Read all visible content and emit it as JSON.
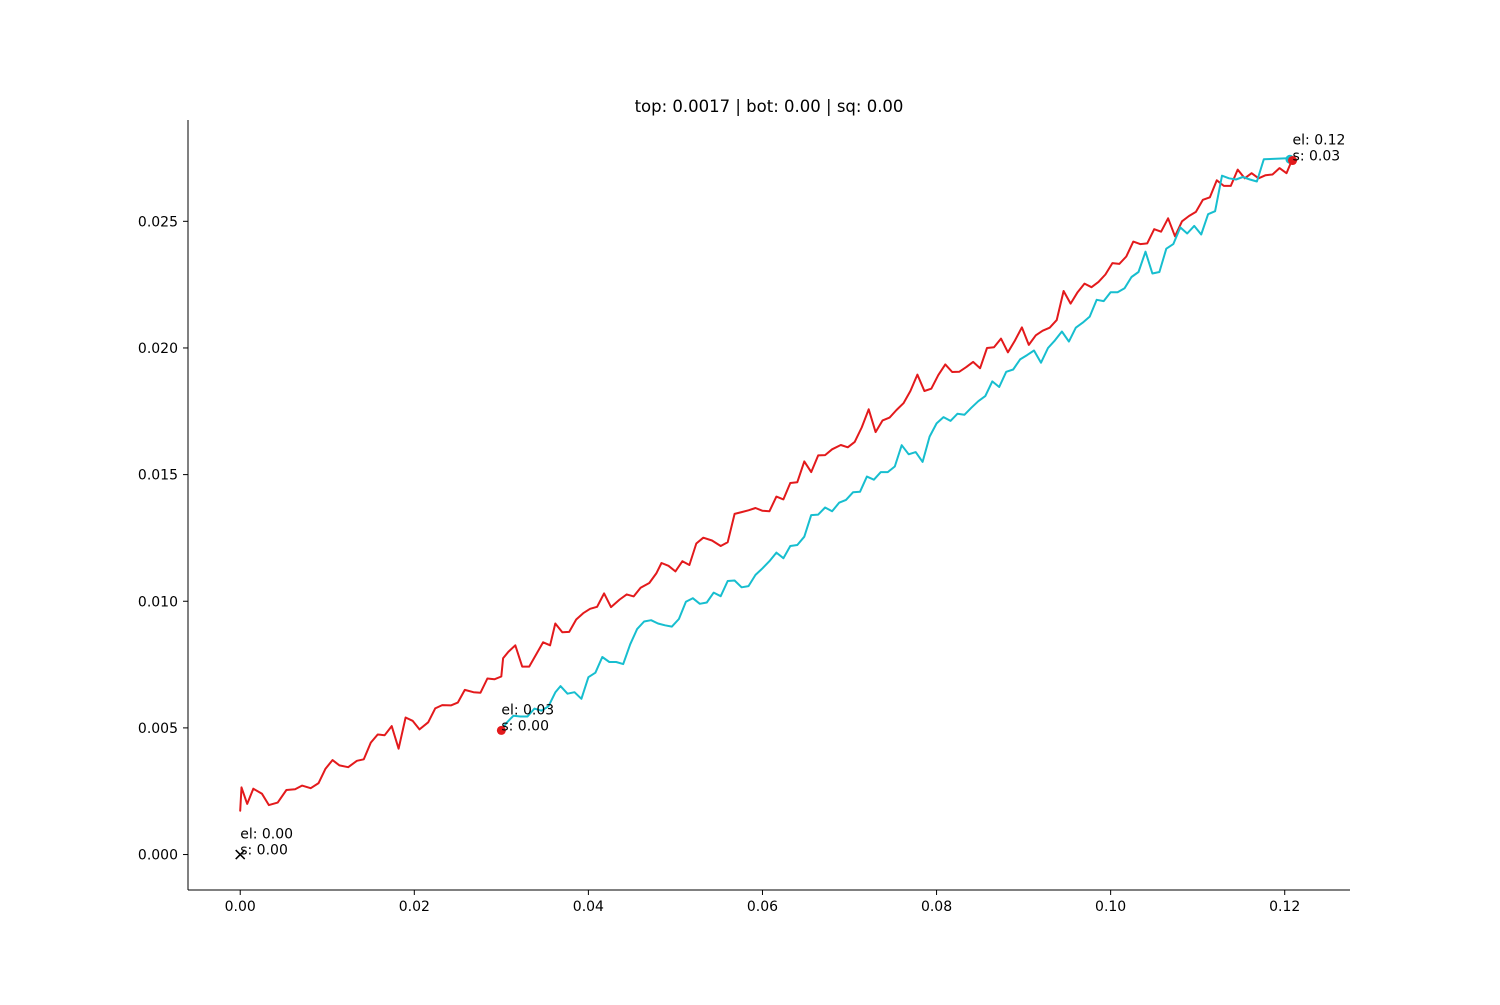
{
  "chart_data": {
    "type": "line",
    "title": "top: 0.0017 | bot: 0.00 | sq: 0.00",
    "xlabel": "",
    "ylabel": "",
    "xlim": [
      -0.006,
      0.1275
    ],
    "ylim": [
      -0.0014,
      0.029
    ],
    "x_ticks": [
      0.0,
      0.02,
      0.04,
      0.06,
      0.08,
      0.1,
      0.12
    ],
    "x_tick_labels": [
      "0.00",
      "0.02",
      "0.04",
      "0.06",
      "0.08",
      "0.10",
      "0.12"
    ],
    "y_ticks": [
      0.0,
      0.005,
      0.01,
      0.015,
      0.02,
      0.025
    ],
    "y_tick_labels": [
      "0.000",
      "0.005",
      "0.010",
      "0.015",
      "0.020",
      "0.025"
    ],
    "grid": false,
    "legend": "none",
    "colors": {
      "red": "#e31a1c",
      "teal": "#17becf",
      "marker": "#000000"
    },
    "series": [
      {
        "color": "#e31a1c",
        "points": [
          [
            0.0,
            0.00173
          ],
          [
            0.00015,
            0.00265
          ],
          [
            0.0008,
            0.002
          ],
          [
            0.0015,
            0.0026
          ],
          [
            0.0025,
            0.0024
          ],
          [
            0.0033,
            0.00195
          ],
          [
            0.0043,
            0.00205
          ],
          [
            0.0053,
            0.00255
          ],
          [
            0.0063,
            0.00258
          ],
          [
            0.0071,
            0.00272
          ],
          [
            0.0081,
            0.00262
          ],
          [
            0.009,
            0.00282
          ],
          [
            0.0098,
            0.00339
          ],
          [
            0.0106,
            0.00373
          ],
          [
            0.0114,
            0.00352
          ],
          [
            0.0124,
            0.00345
          ],
          [
            0.0134,
            0.0037
          ],
          [
            0.0142,
            0.00376
          ],
          [
            0.015,
            0.00442
          ],
          [
            0.0158,
            0.00474
          ],
          [
            0.0166,
            0.00471
          ],
          [
            0.0174,
            0.00507
          ],
          [
            0.0182,
            0.00418
          ],
          [
            0.019,
            0.00541
          ],
          [
            0.0198,
            0.00528
          ],
          [
            0.0206,
            0.00494
          ],
          [
            0.0216,
            0.00522
          ],
          [
            0.0224,
            0.00577
          ],
          [
            0.0232,
            0.0059
          ],
          [
            0.0242,
            0.00589
          ],
          [
            0.025,
            0.006
          ],
          [
            0.0258,
            0.0065
          ],
          [
            0.0268,
            0.00641
          ],
          [
            0.0276,
            0.00639
          ],
          [
            0.0284,
            0.00695
          ],
          [
            0.0292,
            0.00692
          ],
          [
            0.03,
            0.00703
          ],
          [
            0.0302,
            0.00775
          ],
          [
            0.0308,
            0.008
          ],
          [
            0.0316,
            0.00826
          ],
          [
            0.0324,
            0.00742
          ],
          [
            0.0332,
            0.00742
          ],
          [
            0.034,
            0.0079
          ],
          [
            0.0348,
            0.00838
          ],
          [
            0.0356,
            0.00826
          ],
          [
            0.0362,
            0.00912
          ],
          [
            0.037,
            0.00878
          ],
          [
            0.0378,
            0.00879
          ],
          [
            0.0386,
            0.00928
          ],
          [
            0.0394,
            0.00953
          ],
          [
            0.0402,
            0.0097
          ],
          [
            0.041,
            0.00978
          ],
          [
            0.0418,
            0.01031
          ],
          [
            0.0426,
            0.00977
          ],
          [
            0.0436,
            0.01007
          ],
          [
            0.0444,
            0.01027
          ],
          [
            0.0452,
            0.01019
          ],
          [
            0.046,
            0.01053
          ],
          [
            0.047,
            0.01072
          ],
          [
            0.0478,
            0.0111
          ],
          [
            0.0484,
            0.01151
          ],
          [
            0.0492,
            0.0114
          ],
          [
            0.05,
            0.01118
          ],
          [
            0.0508,
            0.01158
          ],
          [
            0.0516,
            0.01143
          ],
          [
            0.0524,
            0.01228
          ],
          [
            0.0532,
            0.01251
          ],
          [
            0.0542,
            0.0124
          ],
          [
            0.0552,
            0.01218
          ],
          [
            0.056,
            0.01233
          ],
          [
            0.0568,
            0.01345
          ],
          [
            0.0576,
            0.01352
          ],
          [
            0.0584,
            0.01359
          ],
          [
            0.0592,
            0.01368
          ],
          [
            0.06,
            0.01357
          ],
          [
            0.0608,
            0.01355
          ],
          [
            0.0616,
            0.01413
          ],
          [
            0.0624,
            0.01402
          ],
          [
            0.0632,
            0.01467
          ],
          [
            0.064,
            0.0147
          ],
          [
            0.0648,
            0.01552
          ],
          [
            0.0656,
            0.0151
          ],
          [
            0.0664,
            0.01576
          ],
          [
            0.0672,
            0.01577
          ],
          [
            0.068,
            0.016
          ],
          [
            0.069,
            0.01617
          ],
          [
            0.0698,
            0.01608
          ],
          [
            0.0706,
            0.01629
          ],
          [
            0.0714,
            0.01686
          ],
          [
            0.0722,
            0.01758
          ],
          [
            0.073,
            0.01668
          ],
          [
            0.0738,
            0.01714
          ],
          [
            0.0746,
            0.01725
          ],
          [
            0.0754,
            0.01755
          ],
          [
            0.0762,
            0.01782
          ],
          [
            0.077,
            0.0183
          ],
          [
            0.0778,
            0.01895
          ],
          [
            0.0786,
            0.0183
          ],
          [
            0.0794,
            0.01839
          ],
          [
            0.0802,
            0.01893
          ],
          [
            0.081,
            0.01935
          ],
          [
            0.0818,
            0.01905
          ],
          [
            0.0826,
            0.01906
          ],
          [
            0.0834,
            0.01924
          ],
          [
            0.0842,
            0.01945
          ],
          [
            0.085,
            0.0192
          ],
          [
            0.0858,
            0.02
          ],
          [
            0.0866,
            0.02003
          ],
          [
            0.0874,
            0.02037
          ],
          [
            0.0882,
            0.01983
          ],
          [
            0.089,
            0.02029
          ],
          [
            0.0898,
            0.02081
          ],
          [
            0.0906,
            0.02012
          ],
          [
            0.0914,
            0.0205
          ],
          [
            0.0922,
            0.02068
          ],
          [
            0.093,
            0.0208
          ],
          [
            0.0938,
            0.0211
          ],
          [
            0.0946,
            0.02225
          ],
          [
            0.0954,
            0.02175
          ],
          [
            0.0962,
            0.0222
          ],
          [
            0.097,
            0.02254
          ],
          [
            0.0978,
            0.0224
          ],
          [
            0.0986,
            0.02261
          ],
          [
            0.0994,
            0.0229
          ],
          [
            0.1002,
            0.02335
          ],
          [
            0.101,
            0.02332
          ],
          [
            0.1018,
            0.02361
          ],
          [
            0.1026,
            0.0242
          ],
          [
            0.1034,
            0.0241
          ],
          [
            0.1042,
            0.02413
          ],
          [
            0.105,
            0.02469
          ],
          [
            0.1058,
            0.02459
          ],
          [
            0.1066,
            0.02512
          ],
          [
            0.1074,
            0.02441
          ],
          [
            0.1082,
            0.025
          ],
          [
            0.109,
            0.02521
          ],
          [
            0.1098,
            0.02537
          ],
          [
            0.1106,
            0.02585
          ],
          [
            0.1114,
            0.02595
          ],
          [
            0.1122,
            0.02662
          ],
          [
            0.113,
            0.0264
          ],
          [
            0.1138,
            0.0264
          ],
          [
            0.1146,
            0.02704
          ],
          [
            0.1154,
            0.0267
          ],
          [
            0.1162,
            0.0269
          ],
          [
            0.117,
            0.0267
          ],
          [
            0.1178,
            0.02682
          ],
          [
            0.1186,
            0.02685
          ],
          [
            0.1194,
            0.0271
          ],
          [
            0.1202,
            0.0269
          ],
          [
            0.1208,
            0.02739
          ]
        ]
      },
      {
        "color": "#17becf",
        "points": [
          [
            0.03,
            0.0049
          ],
          [
            0.0306,
            0.0052
          ],
          [
            0.0314,
            0.00548
          ],
          [
            0.0322,
            0.00545
          ],
          [
            0.033,
            0.00545
          ],
          [
            0.0338,
            0.00576
          ],
          [
            0.0346,
            0.00568
          ],
          [
            0.0354,
            0.00585
          ],
          [
            0.0362,
            0.0064
          ],
          [
            0.0368,
            0.00665
          ],
          [
            0.0376,
            0.00635
          ],
          [
            0.0384,
            0.00641
          ],
          [
            0.0392,
            0.00615
          ],
          [
            0.04,
            0.007
          ],
          [
            0.0408,
            0.00718
          ],
          [
            0.0416,
            0.0078
          ],
          [
            0.0424,
            0.0076
          ],
          [
            0.0432,
            0.0076
          ],
          [
            0.044,
            0.00752
          ],
          [
            0.0448,
            0.0083
          ],
          [
            0.0456,
            0.0089
          ],
          [
            0.0464,
            0.0092
          ],
          [
            0.0472,
            0.00925
          ],
          [
            0.048,
            0.00912
          ],
          [
            0.0488,
            0.00905
          ],
          [
            0.0496,
            0.009
          ],
          [
            0.0504,
            0.0093
          ],
          [
            0.0512,
            0.00998
          ],
          [
            0.052,
            0.01012
          ],
          [
            0.0528,
            0.0099
          ],
          [
            0.0536,
            0.00995
          ],
          [
            0.0544,
            0.01034
          ],
          [
            0.0552,
            0.0102
          ],
          [
            0.056,
            0.0108
          ],
          [
            0.0568,
            0.01082
          ],
          [
            0.0576,
            0.01055
          ],
          [
            0.0584,
            0.0106
          ],
          [
            0.0592,
            0.01104
          ],
          [
            0.06,
            0.0113
          ],
          [
            0.0608,
            0.01158
          ],
          [
            0.0616,
            0.01192
          ],
          [
            0.0624,
            0.0117
          ],
          [
            0.0632,
            0.01218
          ],
          [
            0.064,
            0.01222
          ],
          [
            0.0648,
            0.01255
          ],
          [
            0.0656,
            0.0134
          ],
          [
            0.0664,
            0.01342
          ],
          [
            0.0672,
            0.0137
          ],
          [
            0.068,
            0.01355
          ],
          [
            0.0688,
            0.01389
          ],
          [
            0.0696,
            0.014
          ],
          [
            0.0704,
            0.0143
          ],
          [
            0.0712,
            0.01432
          ],
          [
            0.072,
            0.01492
          ],
          [
            0.0728,
            0.0148
          ],
          [
            0.0736,
            0.0151
          ],
          [
            0.0744,
            0.0151
          ],
          [
            0.0752,
            0.01532
          ],
          [
            0.076,
            0.01616
          ],
          [
            0.0768,
            0.0158
          ],
          [
            0.0776,
            0.01589
          ],
          [
            0.0784,
            0.0155
          ],
          [
            0.0792,
            0.0165
          ],
          [
            0.08,
            0.01702
          ],
          [
            0.0808,
            0.01727
          ],
          [
            0.0816,
            0.01712
          ],
          [
            0.0824,
            0.0174
          ],
          [
            0.0832,
            0.01736
          ],
          [
            0.084,
            0.01764
          ],
          [
            0.0848,
            0.0179
          ],
          [
            0.0856,
            0.0181
          ],
          [
            0.0864,
            0.01868
          ],
          [
            0.0872,
            0.01846
          ],
          [
            0.088,
            0.01906
          ],
          [
            0.0888,
            0.01915
          ],
          [
            0.0896,
            0.01955
          ],
          [
            0.0904,
            0.01972
          ],
          [
            0.0912,
            0.0199
          ],
          [
            0.092,
            0.01942
          ],
          [
            0.0928,
            0.02
          ],
          [
            0.0936,
            0.0203
          ],
          [
            0.0944,
            0.02065
          ],
          [
            0.0952,
            0.02025
          ],
          [
            0.096,
            0.0208
          ],
          [
            0.0968,
            0.021
          ],
          [
            0.0976,
            0.02124
          ],
          [
            0.0984,
            0.0219
          ],
          [
            0.0992,
            0.02185
          ],
          [
            0.1,
            0.0222
          ],
          [
            0.1008,
            0.0222
          ],
          [
            0.1016,
            0.02236
          ],
          [
            0.1024,
            0.0228
          ],
          [
            0.1032,
            0.023
          ],
          [
            0.104,
            0.0238
          ],
          [
            0.1048,
            0.02294
          ],
          [
            0.1056,
            0.023
          ],
          [
            0.1064,
            0.02392
          ],
          [
            0.1072,
            0.0241
          ],
          [
            0.108,
            0.02476
          ],
          [
            0.1088,
            0.02452
          ],
          [
            0.1096,
            0.02482
          ],
          [
            0.1104,
            0.02448
          ],
          [
            0.1112,
            0.02528
          ],
          [
            0.112,
            0.0254
          ],
          [
            0.1128,
            0.0268
          ],
          [
            0.1136,
            0.0267
          ],
          [
            0.1144,
            0.02665
          ],
          [
            0.1152,
            0.02675
          ],
          [
            0.116,
            0.02665
          ],
          [
            0.1168,
            0.02657
          ],
          [
            0.1176,
            0.02745
          ],
          [
            0.121,
            0.0275
          ]
        ]
      }
    ],
    "markers": [
      {
        "shape": "x",
        "color": "#000000",
        "x": 0.0,
        "y": 0.0,
        "lines": [
          "el: 0.00",
          "s: 0.00"
        ]
      },
      {
        "shape": "dot",
        "color": "#e31a1c",
        "x": 0.03,
        "y": 0.0049,
        "lines": [
          "el: 0.03",
          "s: 0.00"
        ]
      },
      {
        "shape": "dot",
        "color": "#17becf",
        "x": 0.1206,
        "y": 0.02745,
        "lines": []
      },
      {
        "shape": "dot",
        "color": "#e31a1c",
        "x": 0.1209,
        "y": 0.0274,
        "lines": [
          "el: 0.12",
          "s: 0.03"
        ]
      }
    ]
  }
}
